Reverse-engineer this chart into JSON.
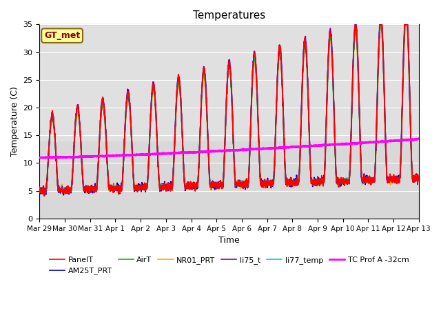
{
  "title": "Temperatures",
  "xlabel": "Time",
  "ylabel": "Temperature (C)",
  "ylim": [
    0,
    35
  ],
  "annotation_text": "GT_met",
  "annotation_color": "#8B0000",
  "annotation_bg": "#FFFF99",
  "annotation_border": "#8B6914",
  "plot_bg_color": "#D8D8D8",
  "upper_band_color": "#C8C8C8",
  "series": {
    "PanelT": {
      "color": "#FF0000",
      "lw": 1.2
    },
    "AM25T_PRT": {
      "color": "#0000CC",
      "lw": 1.2
    },
    "AirT": {
      "color": "#00BB00",
      "lw": 1.2
    },
    "NR01_PRT": {
      "color": "#FFA500",
      "lw": 1.2
    },
    "li75_t": {
      "color": "#880088",
      "lw": 1.2
    },
    "li77_temp": {
      "color": "#00CCCC",
      "lw": 1.2
    },
    "TC Prof A -32cm": {
      "color": "#FF00FF",
      "lw": 2.0
    }
  },
  "xtick_labels": [
    "Mar 29",
    "Mar 30",
    "Mar 31",
    "Apr 1",
    "Apr 2",
    "Apr 3",
    "Apr 4",
    "Apr 5",
    "Apr 6",
    "Apr 7",
    "Apr 8",
    "Apr 9",
    "Apr 10",
    "Apr 11",
    "Apr 12",
    "Apr 13"
  ],
  "n_days": 15,
  "samples_per_day": 144
}
